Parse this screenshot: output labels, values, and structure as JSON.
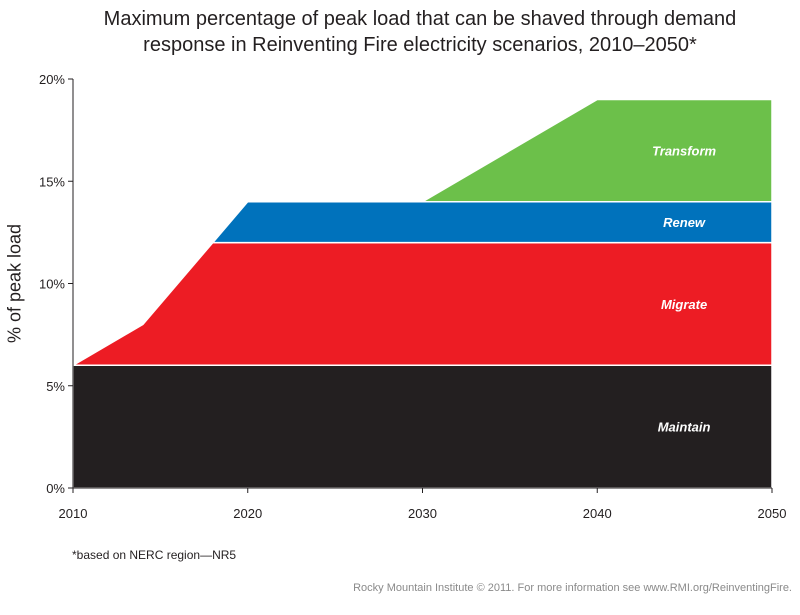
{
  "title_line1": "Maximum percentage of peak load that can be shaved through demand",
  "title_line2": "response in Reinventing Fire electricity scenarios, 2010–2050*",
  "footnote": "*based on NERC region—NR5",
  "credit": "Rocky Mountain Institute © 2011. For more information see www.RMI.org/ReinventingFire.",
  "chart_data": {
    "type": "area",
    "stacked": true,
    "ylabel": "% of peak load",
    "xlim": [
      2010,
      2050
    ],
    "ylim": [
      0,
      20
    ],
    "x_ticks": [
      2010,
      2020,
      2030,
      2040,
      2050
    ],
    "y_ticks": [
      {
        "value": 0,
        "label": "0%"
      },
      {
        "value": 5,
        "label": "5%"
      },
      {
        "value": 10,
        "label": "10%"
      },
      {
        "value": 15,
        "label": "15%"
      },
      {
        "value": 20,
        "label": "20%"
      }
    ],
    "grid": false,
    "series": [
      {
        "name": "Maintain",
        "color": "#231f20",
        "points": [
          [
            2010,
            6
          ],
          [
            2050,
            6
          ]
        ]
      },
      {
        "name": "Migrate",
        "color": "#ed1c24",
        "points": [
          [
            2010,
            0
          ],
          [
            2014,
            2
          ],
          [
            2018,
            6
          ],
          [
            2050,
            6
          ]
        ]
      },
      {
        "name": "Renew",
        "color": "#0072bc",
        "points": [
          [
            2018,
            0
          ],
          [
            2020,
            2
          ],
          [
            2050,
            2
          ]
        ]
      },
      {
        "name": "Transform",
        "color": "#6cc04a",
        "points": [
          [
            2030,
            0
          ],
          [
            2040,
            5
          ],
          [
            2050,
            5
          ]
        ]
      }
    ]
  }
}
